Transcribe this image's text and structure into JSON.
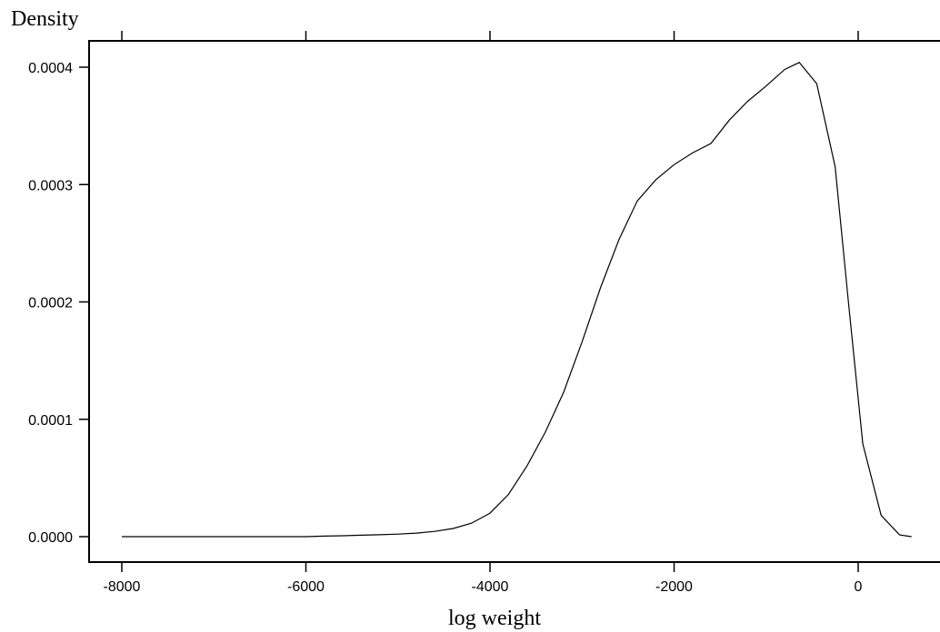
{
  "chart_data": {
    "type": "line",
    "title": "",
    "xlabel": "log weight",
    "ylabel": "Density",
    "xlim": [
      -8300,
      600
    ],
    "ylim": [
      -2e-05,
      0.00042
    ],
    "x_ticks": [
      -8000,
      -6000,
      -4000,
      -2000,
      0
    ],
    "x_tick_labels": [
      "-8000",
      "-6000",
      "-4000",
      "-2000",
      "0"
    ],
    "y_ticks": [
      0.0,
      0.0001,
      0.0002,
      0.0003,
      0.0004
    ],
    "y_tick_labels": [
      "0.0000",
      "0.0001",
      "0.0002",
      "0.0003",
      "0.0004"
    ],
    "grid": false,
    "legend": "none",
    "line_color": "#000000",
    "series": [
      {
        "x": [
          -8000,
          -7000,
          -6000,
          -5800,
          -5600,
          -5400,
          -5200,
          -5000,
          -4800,
          -4600,
          -4400,
          -4200,
          -4000,
          -3800,
          -3600,
          -3400,
          -3200,
          -3000,
          -2800,
          -2600,
          -2400,
          -2200,
          -2000,
          -1800,
          -1600,
          -1400,
          -1200,
          -1000,
          -800,
          -640,
          -450,
          -250,
          -100,
          50,
          250,
          450,
          580
        ],
        "y": [
          0.0,
          0.0,
          0.0,
          5e-07,
          8e-07,
          1.2e-06,
          1.6e-06,
          2.2e-06,
          3e-06,
          4.5e-06,
          7e-06,
          1.15e-05,
          2e-05,
          3.6e-05,
          6e-05,
          8.9e-05,
          0.000123,
          0.000166,
          0.000212,
          0.000253,
          0.000286,
          0.000304,
          0.000317,
          0.000327,
          0.000335,
          0.000355,
          0.000371,
          0.000384,
          0.000398,
          0.000404,
          0.000386,
          0.000315,
          0.000195,
          7.9e-05,
          1.8e-05,
          1.5e-06,
          0.0
        ]
      }
    ]
  }
}
